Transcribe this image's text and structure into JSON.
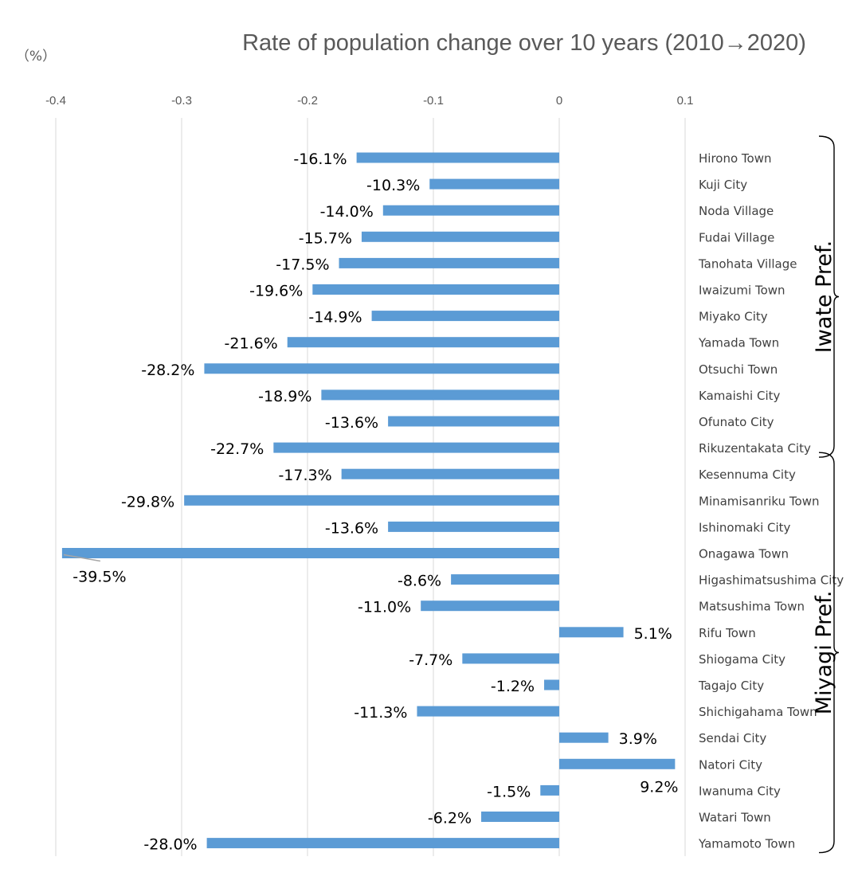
{
  "chart_data": {
    "type": "bar",
    "orientation": "horizontal",
    "title": "Rate of population change over 10 years (2010→2020)",
    "unit_label": "（%）",
    "xlim": [
      -0.4,
      0.1
    ],
    "x_ticks": [
      -0.4,
      -0.3,
      -0.2,
      -0.1,
      0,
      0.1
    ],
    "x_tick_labels": [
      "-0.4",
      "-0.3",
      "-0.2",
      "-0.1",
      "0",
      "0.1"
    ],
    "grid": true,
    "bar_color": "#5b9bd5",
    "categories": [
      "Hirono Town",
      "Kuji City",
      "Noda Village",
      "Fudai Village",
      "Tanohata Village",
      "Iwaizumi Town",
      "Miyako City",
      "Yamada Town",
      "Otsuchi Town",
      "Kamaishi City",
      "Ofunato City",
      "Rikuzentakata City",
      "Kesennuma City",
      "Minamisanriku Town",
      "Ishinomaki City",
      "Onagawa Town",
      "Higashimatsushima City",
      "Matsushima Town",
      "Rifu Town",
      "Shiogama City",
      "Tagajo City",
      "Shichigahama Town",
      "Sendai City",
      "Natori City",
      "Iwanuma City",
      "Watari Town",
      "Yamamoto Town"
    ],
    "values": [
      -0.161,
      -0.103,
      -0.14,
      -0.157,
      -0.175,
      -0.196,
      -0.149,
      -0.216,
      -0.282,
      -0.189,
      -0.136,
      -0.227,
      -0.173,
      -0.298,
      -0.136,
      -0.395,
      -0.086,
      -0.11,
      0.051,
      -0.077,
      -0.012,
      -0.113,
      0.039,
      0.092,
      -0.015,
      -0.062,
      -0.28
    ],
    "data_labels": [
      "-16.1%",
      "-10.3%",
      "-14.0%",
      "-15.7%",
      "-17.5%",
      "-19.6%",
      "-14.9%",
      "-21.6%",
      "-28.2%",
      "-18.9%",
      "-13.6%",
      "-22.7%",
      "-17.3%",
      "-29.8%",
      "-13.6%",
      "-39.5%",
      "-8.6%",
      "-11.0%",
      "5.1%",
      "-7.7%",
      "-1.2%",
      "-11.3%",
      "3.9%",
      "9.2%",
      "-1.5%",
      "-6.2%",
      "-28.0%"
    ],
    "groups": [
      {
        "label": "Iwate Pref.",
        "from": 0,
        "to": 11
      },
      {
        "label": "Miyagi Pref.",
        "from": 12,
        "to": 26
      }
    ]
  }
}
